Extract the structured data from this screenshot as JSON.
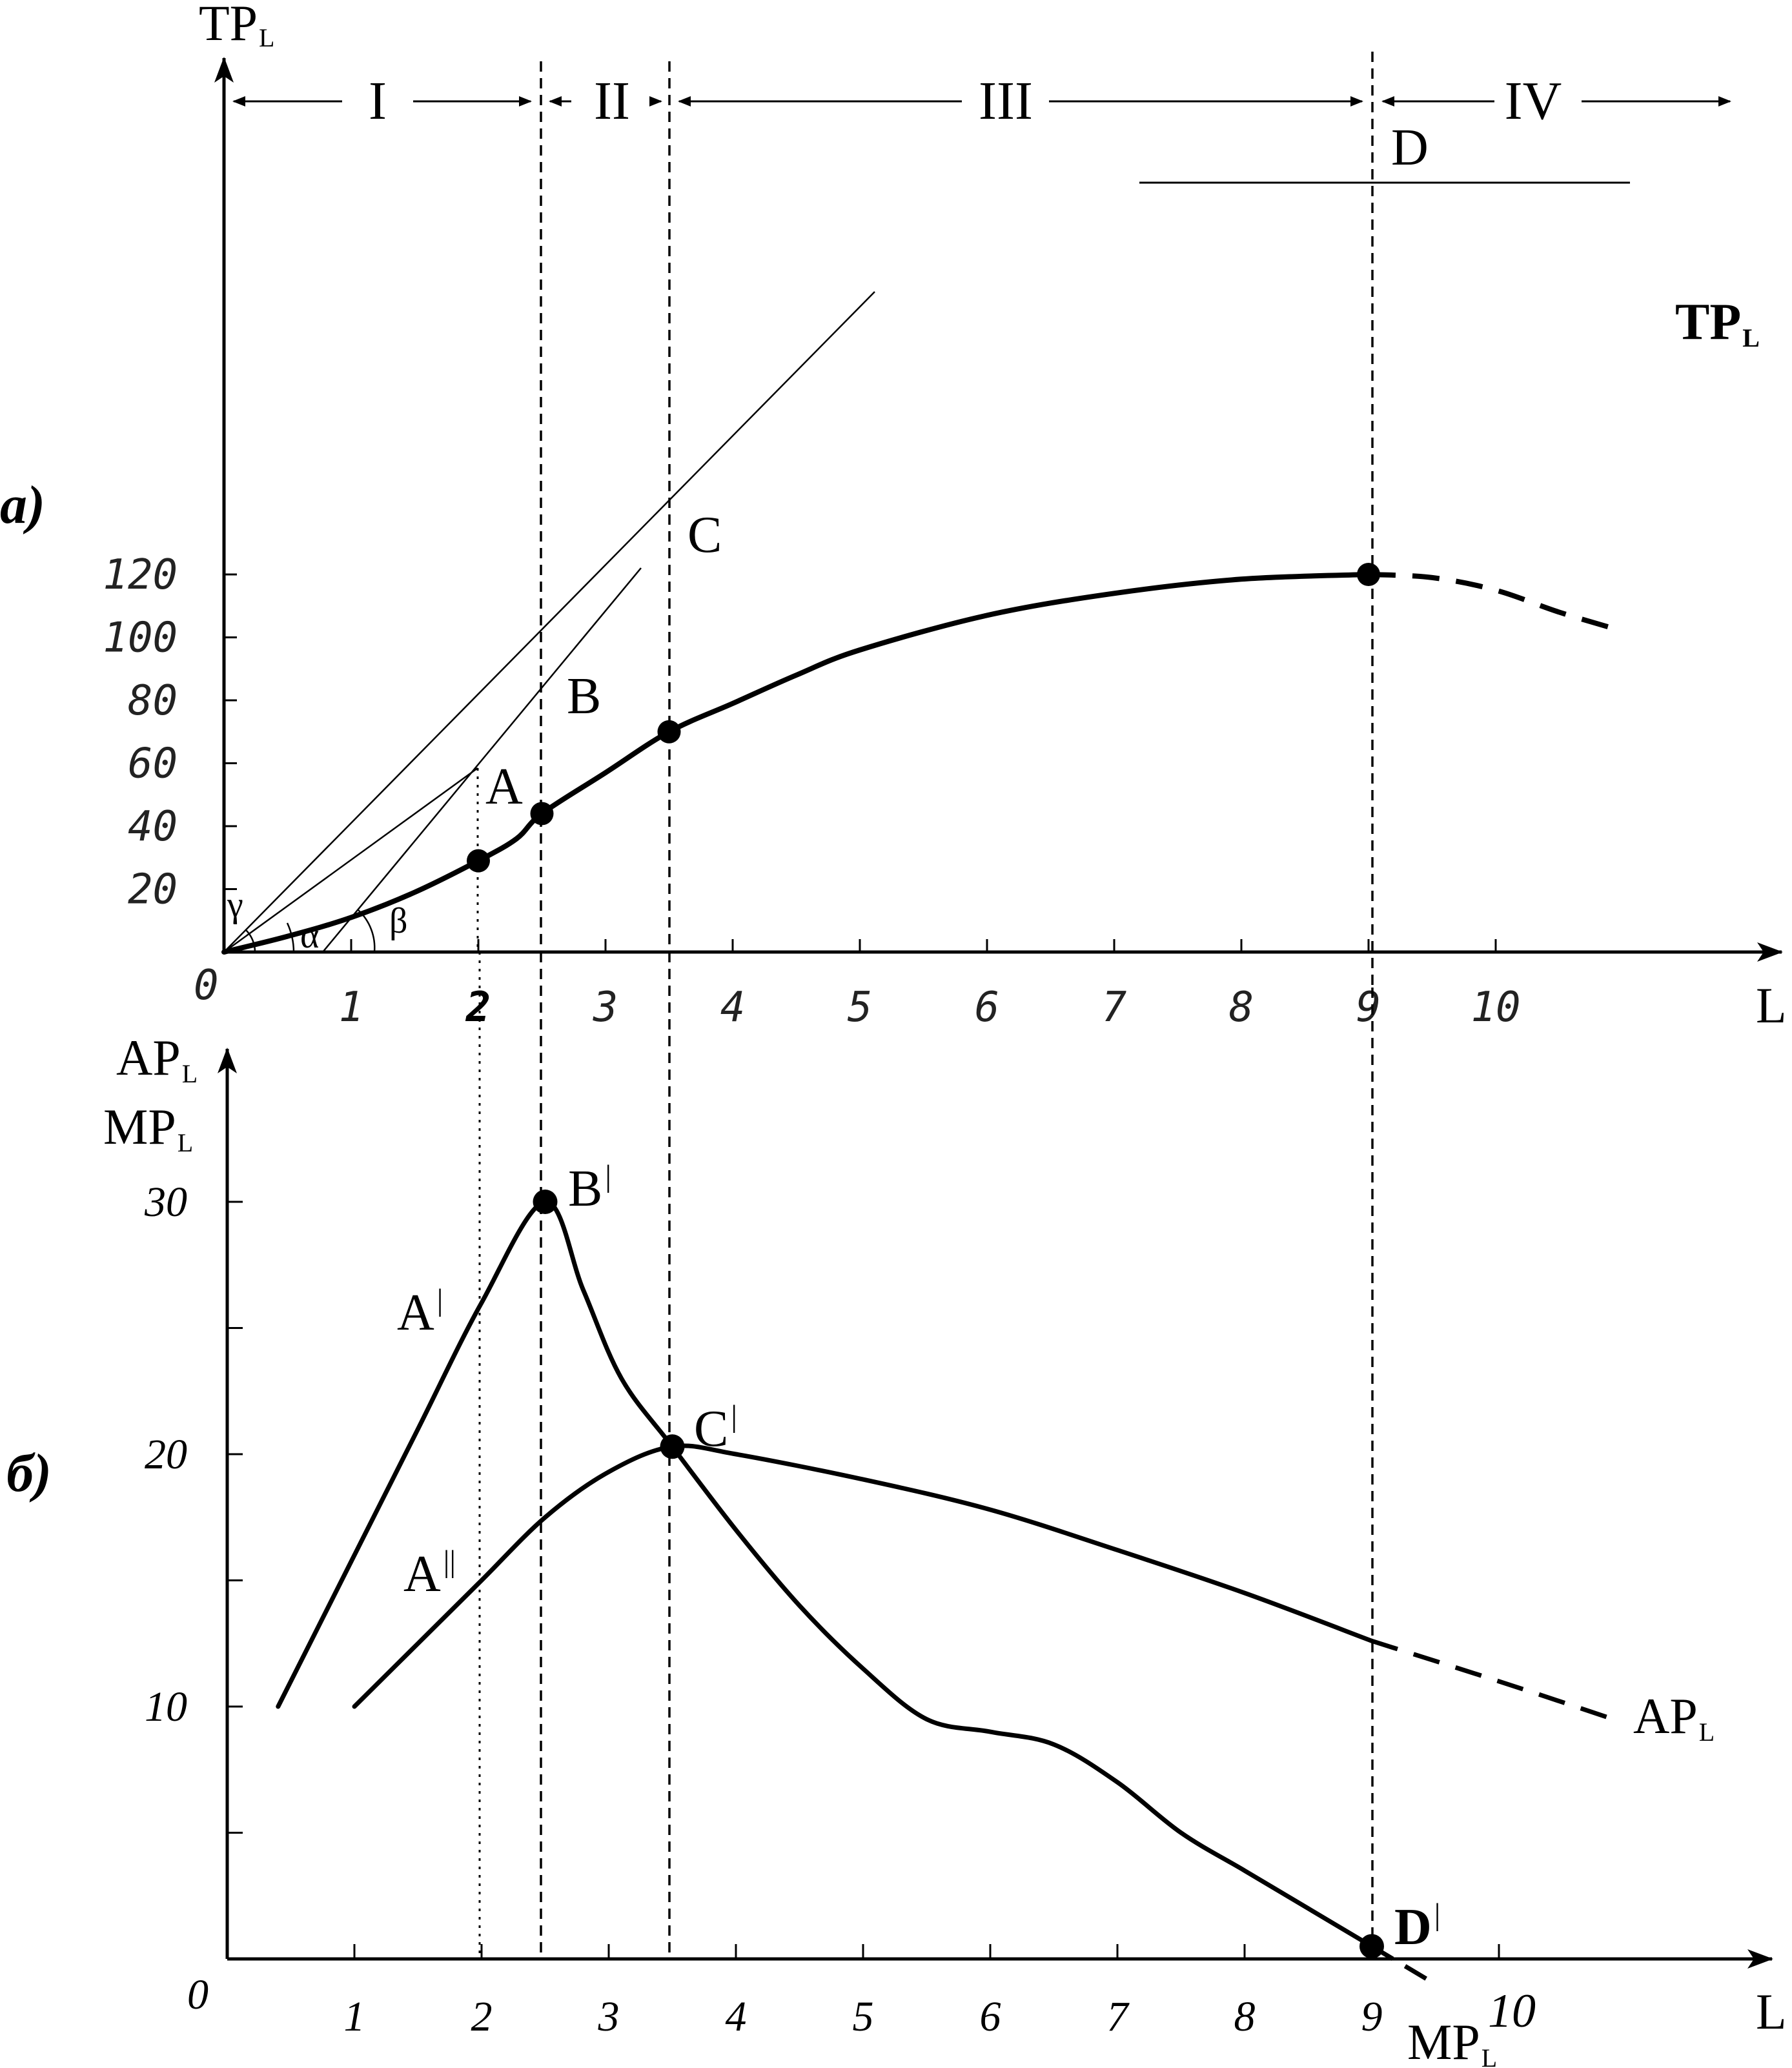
{
  "chart_data": [
    {
      "id": "a",
      "type": "line",
      "panel_label": "а)",
      "y_axis_label": {
        "main": "TP",
        "sub": "L"
      },
      "x_axis_label": "L",
      "origin_label": "0",
      "x_tick_labels": [
        "1",
        "2",
        "3",
        "4",
        "5",
        "6",
        "7",
        "8",
        "9",
        "10"
      ],
      "y_tick_labels": [
        "20",
        "40",
        "60",
        "80",
        "100",
        "120"
      ],
      "xlim": [
        0,
        11.5
      ],
      "ylim": [
        0,
        135
      ],
      "zones": [
        {
          "label": "I",
          "from": 0,
          "to": 2.5
        },
        {
          "label": "II",
          "from": 2.5,
          "to": 3.5
        },
        {
          "label": "III",
          "from": 3.5,
          "to": 9
        },
        {
          "label": "IV",
          "from": 9,
          "to": 11.4
        }
      ],
      "boundary_lines": [
        2.5,
        3.5,
        9
      ],
      "series": [
        {
          "label_main": "TP",
          "label_sub": "L",
          "points": [
            [
              0,
              0
            ],
            [
              0.5,
              5
            ],
            [
              1,
              11
            ],
            [
              1.5,
              19
            ],
            [
              2,
              29
            ],
            [
              2.3,
              36
            ],
            [
              2.5,
              44
            ],
            [
              3,
              57
            ],
            [
              3.5,
              70
            ],
            [
              4,
              79
            ],
            [
              4.5,
              88
            ],
            [
              5,
              96
            ],
            [
              6,
              107
            ],
            [
              7,
              114
            ],
            [
              8,
              118.5
            ],
            [
              9,
              120
            ]
          ],
          "dashed_points": [
            [
              9,
              120
            ],
            [
              9.5,
              119
            ],
            [
              10,
              115
            ],
            [
              10.5,
              108
            ],
            [
              11,
              102
            ]
          ]
        }
      ],
      "points": [
        {
          "label": "A",
          "x": 2,
          "y": 29
        },
        {
          "label": "B",
          "x": 2.5,
          "y": 44
        },
        {
          "label": "C",
          "x": 3.5,
          "y": 70
        },
        {
          "label": "D",
          "x": 9,
          "y": 120
        }
      ],
      "angle_labels": [
        "γ",
        "α",
        "β"
      ]
    },
    {
      "id": "b",
      "type": "line",
      "panel_label": "б)",
      "y_axis_labels": [
        {
          "main": "AP",
          "sub": "L"
        },
        {
          "main": "MP",
          "sub": "L"
        }
      ],
      "x_axis_label": "L",
      "origin_label": "0",
      "x_tick_labels": [
        "1",
        "2",
        "3",
        "4",
        "5",
        "6",
        "7",
        "8",
        "9",
        "10"
      ],
      "y_tick_labels": [
        "10",
        "20",
        "30"
      ],
      "xlim": [
        0,
        11.5
      ],
      "ylim": [
        0,
        35
      ],
      "series": [
        {
          "label_main": "MP",
          "label_sub": "L",
          "points": [
            [
              0.4,
              10
            ],
            [
              1,
              16
            ],
            [
              1.5,
              21
            ],
            [
              2,
              26
            ],
            [
              2.5,
              30
            ],
            [
              2.8,
              26.5
            ],
            [
              3.1,
              23
            ],
            [
              3.5,
              20.3
            ],
            [
              4,
              17
            ],
            [
              4.5,
              14
            ],
            [
              5,
              11.5
            ],
            [
              5.5,
              9.5
            ],
            [
              6,
              9
            ],
            [
              6.5,
              8.5
            ],
            [
              7,
              7
            ],
            [
              7.5,
              5
            ],
            [
              8,
              3.5
            ],
            [
              8.5,
              2
            ],
            [
              9,
              0.5
            ]
          ],
          "dashed_points": [
            [
              9,
              0.5
            ],
            [
              9.5,
              -1
            ]
          ]
        },
        {
          "label_main": "AP",
          "label_sub": "L",
          "points": [
            [
              1,
              10
            ],
            [
              1.5,
              12.5
            ],
            [
              2,
              15
            ],
            [
              2.5,
              17.5
            ],
            [
              3,
              19.3
            ],
            [
              3.5,
              20.3
            ],
            [
              4,
              20
            ],
            [
              5,
              19
            ],
            [
              6,
              17.8
            ],
            [
              7,
              16.2
            ],
            [
              8,
              14.5
            ],
            [
              9,
              12.6
            ]
          ],
          "dashed_points": [
            [
              9,
              12.6
            ],
            [
              10,
              11
            ],
            [
              10.9,
              9.5
            ]
          ]
        }
      ],
      "points": [
        {
          "label": "B",
          "mark": "|",
          "x": 2.5,
          "y": 30
        },
        {
          "label": "C",
          "mark": "|",
          "x": 3.5,
          "y": 20.3
        },
        {
          "label": "D",
          "mark": "|",
          "x": 9,
          "y": 0.5
        }
      ],
      "curve_labels": [
        {
          "label": "A",
          "mark": "|"
        },
        {
          "label": "A",
          "mark": "||"
        }
      ]
    }
  ]
}
